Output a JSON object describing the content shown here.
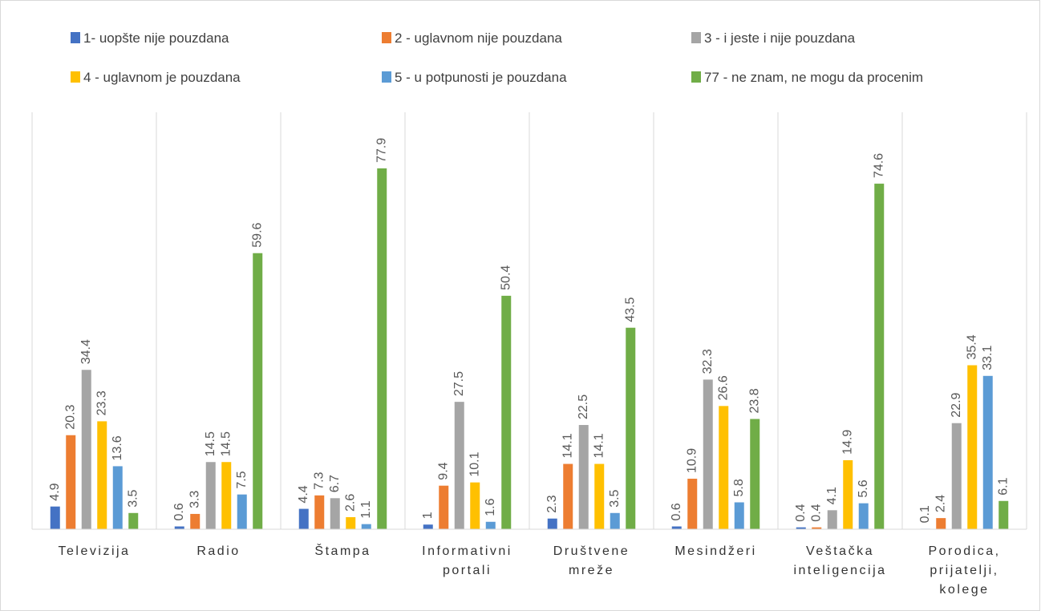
{
  "chart_data": {
    "type": "bar",
    "categories": [
      "Televizija",
      "Radio",
      "Štampa",
      "Informativni portali",
      "Društvene mreže",
      "Mesindžeri",
      "Veštačka inteligencija",
      "Porodica, prijatelji, kolege"
    ],
    "series": [
      {
        "name": "1- uopšte nije pouzdana",
        "color": "#4472c4",
        "values": [
          4.9,
          0.6,
          4.4,
          1,
          2.3,
          0.6,
          0.4,
          0.1
        ]
      },
      {
        "name": "2 - uglavnom nije pouzdana",
        "color": "#ed7d31",
        "values": [
          20.3,
          3.3,
          7.3,
          9.4,
          14.1,
          10.9,
          0.4,
          2.4
        ]
      },
      {
        "name": "3 - i jeste i nije pouzdana",
        "color": "#a5a5a5",
        "values": [
          34.4,
          14.5,
          6.7,
          27.5,
          22.5,
          32.3,
          4.1,
          22.9
        ]
      },
      {
        "name": "4 - uglavnom je pouzdana",
        "color": "#ffc000",
        "values": [
          23.3,
          14.5,
          2.6,
          10.1,
          14.1,
          26.6,
          14.9,
          35.4
        ]
      },
      {
        "name": "5 - u potpunosti je pouzdana",
        "color": "#5b9bd5",
        "values": [
          13.6,
          7.5,
          1.1,
          1.6,
          3.5,
          5.8,
          5.6,
          33.1
        ]
      },
      {
        "name": "77 - ne znam, ne mogu da procenim",
        "color": "#70ad47",
        "values": [
          3.5,
          59.6,
          77.9,
          50.4,
          43.5,
          23.8,
          74.6,
          6.1
        ]
      }
    ]
  }
}
